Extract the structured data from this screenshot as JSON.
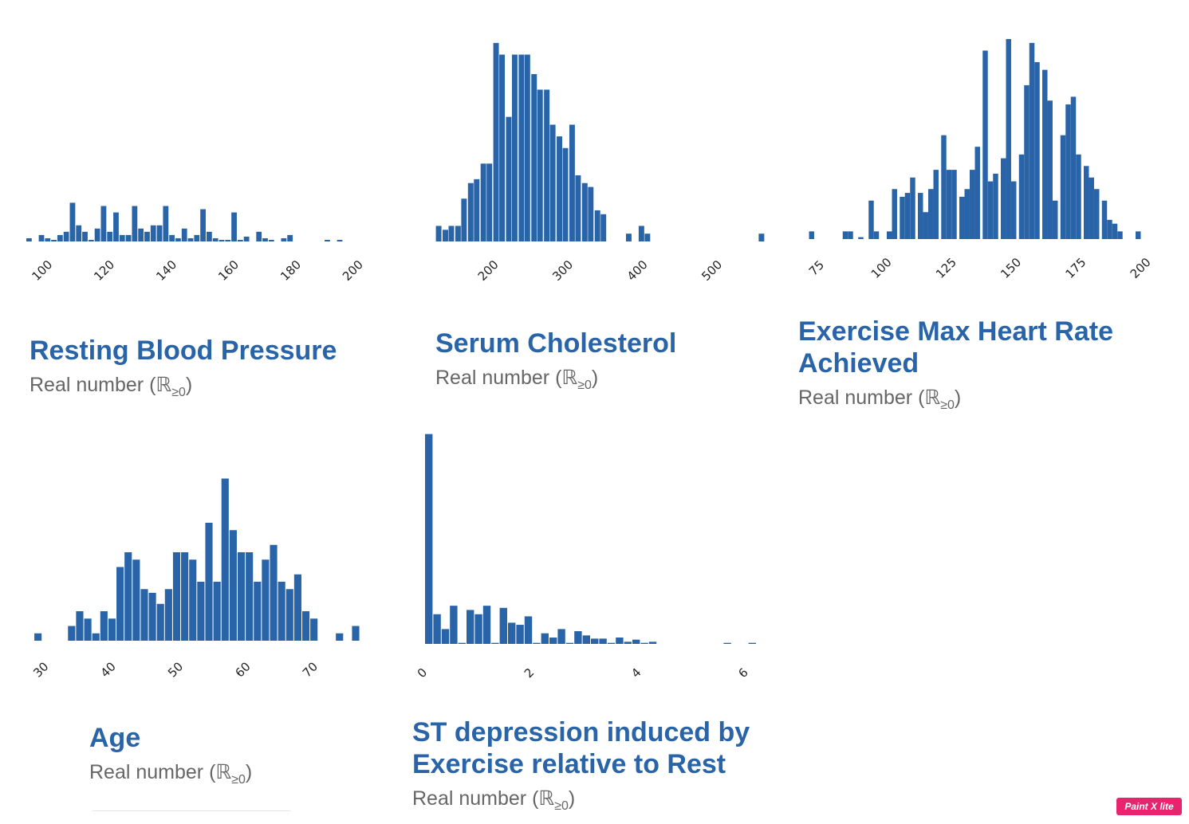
{
  "colors": {
    "bar": "#2a64a8",
    "title": "#2a64a8",
    "subtitle": "#666666",
    "badge": "#e8246f"
  },
  "cards": [
    {
      "title": "Resting Blood Pressure",
      "subtitle": "Real number (ℝ",
      "subtitle_sub": "≥0",
      "subtitle_end": ")"
    },
    {
      "title": "Serum Cholesterol",
      "subtitle": "Real number (ℝ",
      "subtitle_sub": "≥0",
      "subtitle_end": ")"
    },
    {
      "title": "Exercise Max Heart Rate Achieved",
      "subtitle": "Real number (ℝ",
      "subtitle_sub": "≥0",
      "subtitle_end": ")"
    },
    {
      "title": "Age",
      "subtitle": "Real number (ℝ",
      "subtitle_sub": "≥0",
      "subtitle_end": ")"
    },
    {
      "title": "ST depression induced by Exercise relative to Rest",
      "subtitle": "Real number (ℝ",
      "subtitle_sub": "≥0",
      "subtitle_end": ")"
    }
  ],
  "badge": "Paint X lite",
  "chart_data": [
    {
      "type": "bar",
      "title": "Resting Blood Pressure",
      "xlim": [
        94,
        200
      ],
      "ylim": [
        0,
        42
      ],
      "xticks": [
        100,
        120,
        140,
        160,
        180,
        200
      ],
      "bin_width": 2,
      "bin_starts": [
        94,
        98,
        100,
        102,
        104,
        106,
        108,
        110,
        112,
        114,
        116,
        118,
        120,
        122,
        124,
        126,
        128,
        130,
        132,
        134,
        136,
        138,
        140,
        142,
        144,
        146,
        148,
        150,
        152,
        154,
        156,
        158,
        160,
        162,
        164,
        168,
        170,
        172,
        176,
        178,
        190,
        194
      ],
      "counts": [
        1,
        2,
        1,
        0.5,
        2,
        3,
        12,
        5,
        3,
        0.5,
        4,
        11,
        3,
        9,
        2,
        2,
        11,
        4,
        3,
        5,
        5,
        11,
        2,
        1,
        4,
        1,
        2,
        10,
        3,
        1,
        0.5,
        0.5,
        9,
        0.5,
        1.5,
        3,
        1,
        0.5,
        1,
        2,
        0.5,
        0.5
      ]
    },
    {
      "type": "bar",
      "title": "Serum Cholesterol",
      "xlim": [
        120,
        565
      ],
      "ylim": [
        0,
        52
      ],
      "xticks": [
        200,
        300,
        400,
        500
      ],
      "bin_width": 8.5,
      "bin_starts": [
        126,
        135,
        143,
        152,
        160,
        169,
        177,
        186,
        194,
        203,
        211,
        220,
        228,
        237,
        245,
        254,
        262,
        271,
        279,
        288,
        296,
        305,
        313,
        322,
        330,
        339,
        347,
        381,
        398,
        406,
        559
      ],
      "counts": [
        4,
        3,
        4,
        4,
        11,
        15,
        16,
        20,
        20,
        51,
        48,
        32,
        48,
        48,
        48,
        43,
        39,
        39,
        30,
        27,
        24,
        30,
        17,
        15,
        14,
        8,
        7,
        2,
        4,
        2,
        2
      ]
    },
    {
      "type": "bar",
      "title": "Exercise Max Heart Rate Achieved",
      "xlim": [
        69,
        205
      ],
      "ylim": [
        0,
        52
      ],
      "xticks": [
        75,
        100,
        125,
        150,
        175,
        200
      ],
      "bin_width": 2.3,
      "bin_starts": [
        71,
        84,
        86,
        90,
        94,
        96,
        101,
        103,
        106,
        108,
        110,
        113,
        115,
        117,
        119,
        122,
        124,
        126,
        129,
        131,
        133,
        135,
        138,
        140,
        142,
        145,
        147,
        149,
        152,
        154,
        156,
        158,
        161,
        163,
        165,
        168,
        170,
        172,
        174,
        177,
        179,
        181,
        184,
        186,
        188,
        190,
        197
      ],
      "counts": [
        2,
        2,
        2,
        0.5,
        10,
        2,
        2,
        13,
        11,
        12,
        16,
        12,
        7,
        13,
        18,
        27,
        18,
        18,
        11,
        13,
        18,
        24,
        49,
        15,
        17,
        21,
        52,
        15,
        22,
        40,
        51,
        46,
        44,
        36,
        10,
        27,
        35,
        37,
        22,
        19,
        16,
        13,
        10,
        5,
        4,
        2,
        2
      ]
    },
    {
      "type": "bar",
      "title": "Age",
      "xlim": [
        28,
        78
      ],
      "ylim": [
        0,
        56
      ],
      "xticks": [
        30,
        40,
        50,
        60,
        70
      ],
      "bin_width": 1.2,
      "bin_starts": [
        28.6,
        33.6,
        34.8,
        36.0,
        37.2,
        38.4,
        39.6,
        40.8,
        42.0,
        43.2,
        44.4,
        45.6,
        46.8,
        48.0,
        49.2,
        50.4,
        51.6,
        52.8,
        54.0,
        55.2,
        56.4,
        57.6,
        58.8,
        60.0,
        61.2,
        62.4,
        63.6,
        64.8,
        66.0,
        67.2,
        68.4,
        69.6,
        73.4,
        75.8
      ],
      "counts": [
        2,
        4,
        8,
        6,
        2,
        8,
        6,
        20,
        24,
        22,
        14,
        13,
        10,
        14,
        24,
        24,
        22,
        16,
        32,
        16,
        44,
        30,
        24,
        24,
        16,
        22,
        26,
        16,
        14,
        18,
        8,
        6,
        2,
        4
      ]
    },
    {
      "type": "bar",
      "title": "ST depression induced by Exercise relative to Rest",
      "xlim": [
        0,
        6.2
      ],
      "ylim": [
        0,
        100
      ],
      "xticks": [
        0,
        2,
        4,
        6
      ],
      "bin_width": 0.155,
      "bin_starts": [
        0,
        0.155,
        0.31,
        0.465,
        0.62,
        0.775,
        0.93,
        1.085,
        1.24,
        1.395,
        1.55,
        1.705,
        1.86,
        2.015,
        2.17,
        2.325,
        2.48,
        2.635,
        2.79,
        2.945,
        3.1,
        3.255,
        3.41,
        3.565,
        3.72,
        3.875,
        4.03,
        4.185,
        5.58,
        6.045
      ],
      "counts": [
        99,
        14,
        7,
        18,
        0.5,
        16,
        14,
        18,
        0.5,
        17,
        10,
        9,
        13,
        0.5,
        5,
        3,
        7,
        0.5,
        6,
        4,
        2.5,
        2.5,
        0.5,
        3,
        1,
        2,
        0.5,
        1,
        0.5,
        0.5
      ]
    }
  ]
}
